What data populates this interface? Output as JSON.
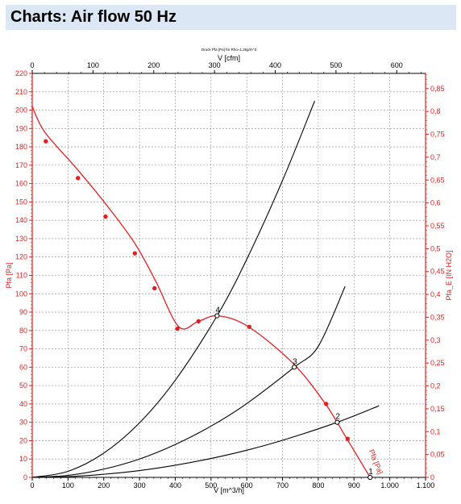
{
  "header": {
    "title": "Charts: Air flow 50 Hz"
  },
  "chart_data": {
    "type": "line",
    "title": "Druck Pfa [Pa] für Rho=1,2kg/m^3",
    "xlabel": "V [m^3/h]",
    "x2label": "V [cfm]",
    "ylabel": "Pfa [Pa]",
    "y2label": "Pfa_E [IN H2O]",
    "xlim": [
      0,
      1100
    ],
    "ylim": [
      0,
      220
    ],
    "x2lim": [
      0,
      647.42
    ],
    "y2lim": [
      0,
      0.8832
    ],
    "x_ticks": [
      0,
      100,
      200,
      300,
      400,
      500,
      600,
      700,
      800,
      900,
      1000,
      1100
    ],
    "x_tick_labels": [
      "0",
      "100",
      "200",
      "300",
      "400",
      "500",
      "600",
      "700",
      "800",
      "900",
      "1.000",
      "1.100"
    ],
    "x2_ticks": [
      0,
      100,
      200,
      300,
      400,
      500,
      600
    ],
    "x2_tick_labels": [
      "0",
      "100",
      "200",
      "300",
      "400",
      "500",
      "600"
    ],
    "y_ticks": [
      0,
      10,
      20,
      30,
      40,
      50,
      60,
      70,
      80,
      90,
      100,
      110,
      120,
      130,
      140,
      150,
      160,
      170,
      180,
      190,
      200,
      210,
      220
    ],
    "y_tick_labels": [
      "0",
      "10",
      "20",
      "30",
      "40",
      "50",
      "60",
      "70",
      "80",
      "90",
      "100",
      "110",
      "120",
      "130",
      "140",
      "150",
      "160",
      "170",
      "180",
      "190",
      "200",
      "210",
      "220"
    ],
    "y2_ticks": [
      0,
      0.05,
      0.1,
      0.15,
      0.2,
      0.25,
      0.3,
      0.35,
      0.4,
      0.45,
      0.5,
      0.55,
      0.6,
      0.65,
      0.7,
      0.75,
      0.8,
      0.85
    ],
    "y2_tick_labels": [
      "0",
      "0,05",
      "0,1",
      "0,15",
      "0,2",
      "0,25",
      "0,3",
      "0,35",
      "0,4",
      "0,45",
      "0,5",
      "0,55",
      "0,6",
      "0,65",
      "0,7",
      "0,75",
      "0,8",
      "0,85"
    ],
    "grid": true,
    "colors": {
      "fan_curve": "#e02020",
      "system_curves": "#000000",
      "red_axis": "#e02020"
    },
    "series": [
      {
        "name": "",
        "role": "fan-curve",
        "x": [
          0,
          35,
          125,
          205,
          285,
          345,
          410,
          465,
          520,
          605,
          730,
          820,
          880,
          945
        ],
        "y": [
          202,
          188,
          168,
          149,
          128,
          107,
          82,
          85,
          88,
          82,
          62,
          40,
          21,
          0
        ],
        "measured_points": {
          "x": [
            38,
            128,
            205,
            287,
            342,
            406,
            465,
            607,
            822,
            882
          ],
          "y": [
            183,
            163,
            142,
            122,
            103,
            81,
            85,
            82,
            40,
            21
          ]
        }
      },
      {
        "name": "",
        "role": "system-curve-4",
        "x": [
          0,
          100,
          200,
          300,
          400,
          517,
          600,
          700,
          790
        ],
        "y": [
          0,
          3.3,
          13.2,
          29.7,
          52.9,
          88,
          118.8,
          161.7,
          205
        ]
      },
      {
        "name": "",
        "role": "system-curve-3",
        "x": [
          0,
          100,
          200,
          300,
          400,
          500,
          600,
          733,
          800,
          875
        ],
        "y": [
          0,
          1.1,
          4.5,
          10.0,
          17.9,
          27.9,
          40.2,
          60,
          71.4,
          104
        ]
      },
      {
        "name": "",
        "role": "system-curve-2",
        "x": [
          0,
          100,
          200,
          300,
          400,
          500,
          600,
          700,
          853,
          970
        ],
        "y": [
          0,
          0.4,
          1.7,
          3.7,
          6.6,
          10.3,
          14.8,
          20.2,
          30,
          39
        ]
      }
    ],
    "operating_points": [
      {
        "label": "4",
        "x": 517,
        "y": 88
      },
      {
        "label": "3",
        "x": 733,
        "y": 60
      },
      {
        "label": "2",
        "x": 853,
        "y": 30
      },
      {
        "label": "1",
        "x": 945,
        "y": 0
      }
    ],
    "curve_annotation": "Pfa [Pa]"
  }
}
